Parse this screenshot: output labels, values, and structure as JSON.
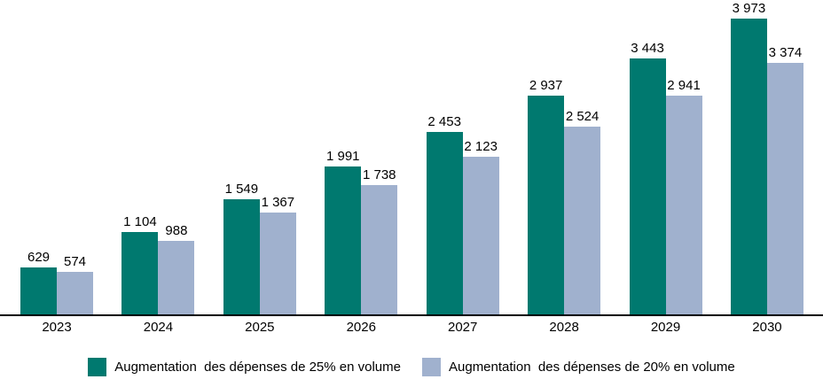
{
  "chart_data": {
    "type": "bar",
    "title": "",
    "xlabel": "",
    "ylabel": "",
    "ylim": [
      0,
      4000
    ],
    "grid": false,
    "legend_position": "bottom",
    "background": "#FFFFFF",
    "axis_color": "#000000",
    "categories": [
      "2023",
      "2024",
      "2025",
      "2026",
      "2027",
      "2028",
      "2029",
      "2030"
    ],
    "series": [
      {
        "name": "Augmentation  des dépenses de 25% en volume",
        "color": "#00796F",
        "values": [
          629,
          1104,
          1549,
          1991,
          2453,
          2937,
          3443,
          3973
        ],
        "labels": [
          "629",
          "1 104",
          "1 549",
          "1 991",
          "2 453",
          "2 937",
          "3 443",
          "3 973"
        ]
      },
      {
        "name": "Augmentation  des dépenses de 20% en volume",
        "color": "#A0B1CE",
        "values": [
          574,
          988,
          1367,
          1738,
          2123,
          2524,
          2941,
          3374
        ],
        "labels": [
          "574",
          "988",
          "1 367",
          "1 738",
          "2 123",
          "2 524",
          "2 941",
          "3 374"
        ]
      }
    ]
  }
}
